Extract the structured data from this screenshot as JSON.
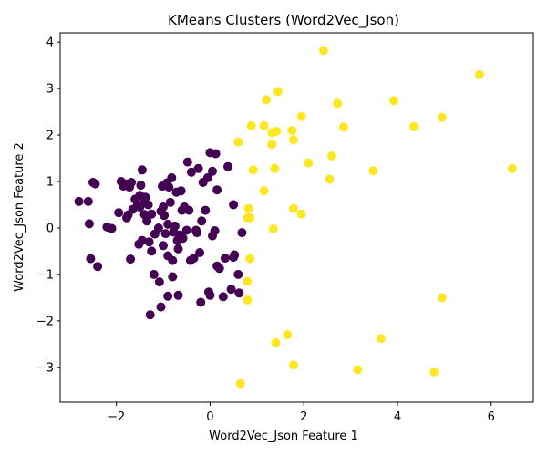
{
  "chart_data": {
    "type": "scatter",
    "title": "KMeans Clusters (Word2Vec_Json)",
    "xlabel": "Word2Vec_Json Feature 1",
    "ylabel": "Word2Vec_Json Feature 2",
    "xlim": [
      -3.2,
      6.9
    ],
    "ylim": [
      -3.75,
      4.2
    ],
    "xticks": [
      -2,
      0,
      2,
      4,
      6
    ],
    "yticks": [
      -3,
      -2,
      -1,
      0,
      1,
      2,
      3,
      4
    ],
    "xtick_labels": [
      "−2",
      "0",
      "2",
      "4",
      "6"
    ],
    "ytick_labels": [
      "−3",
      "−2",
      "−1",
      "0",
      "1",
      "2",
      "3",
      "4"
    ],
    "grid": false,
    "legend": "none",
    "series": [
      {
        "color": "#440154",
        "points": [
          [
            -2.8,
            0.57
          ],
          [
            -2.6,
            0.57
          ],
          [
            -2.58,
            0.09
          ],
          [
            -2.55,
            -0.66
          ],
          [
            -2.5,
            0.98
          ],
          [
            -2.45,
            0.95
          ],
          [
            -2.4,
            -0.83
          ],
          [
            -2.2,
            0.02
          ],
          [
            -2.1,
            -0.01
          ],
          [
            -1.95,
            0.33
          ],
          [
            -1.9,
            1.0
          ],
          [
            -1.85,
            0.9
          ],
          [
            -1.8,
            0.95
          ],
          [
            -1.78,
            0.22
          ],
          [
            -1.75,
            0.28
          ],
          [
            -1.72,
            0.88
          ],
          [
            -1.7,
            -0.67
          ],
          [
            -1.68,
            0.98
          ],
          [
            -1.65,
            0.4
          ],
          [
            -1.6,
            0.62
          ],
          [
            -1.55,
            0.5
          ],
          [
            -1.52,
            -0.35
          ],
          [
            -1.5,
            0.45
          ],
          [
            -1.5,
            0.7
          ],
          [
            -1.48,
            0.92
          ],
          [
            -1.45,
            1.25
          ],
          [
            -1.45,
            -0.27
          ],
          [
            -1.4,
            0.29
          ],
          [
            -1.4,
            0.58
          ],
          [
            -1.38,
            0.66
          ],
          [
            -1.35,
            0.15
          ],
          [
            -1.32,
            0.5
          ],
          [
            -1.3,
            -0.3
          ],
          [
            -1.28,
            -1.87
          ],
          [
            -1.25,
            -0.5
          ],
          [
            -1.25,
            0.3
          ],
          [
            -1.2,
            -1.0
          ],
          [
            -1.18,
            -0.13
          ],
          [
            -1.1,
            0.0
          ],
          [
            -1.08,
            -1.16
          ],
          [
            -1.05,
            -1.7
          ],
          [
            -1.05,
            0.36
          ],
          [
            -1.02,
            0.9
          ],
          [
            -1.0,
            -0.38
          ],
          [
            -1.0,
            0.45
          ],
          [
            -0.98,
            0.27
          ],
          [
            -0.95,
            -0.12
          ],
          [
            -0.92,
            0.97
          ],
          [
            -0.9,
            -0.6
          ],
          [
            -0.9,
            0.08
          ],
          [
            -0.9,
            -1.47
          ],
          [
            -0.88,
            0.88
          ],
          [
            -0.85,
            0.55
          ],
          [
            -0.82,
            1.08
          ],
          [
            -0.8,
            -1.05
          ],
          [
            -0.8,
            -0.7
          ],
          [
            -0.78,
            -0.09
          ],
          [
            -0.75,
            0.04
          ],
          [
            -0.72,
            0.77
          ],
          [
            -0.7,
            -0.27
          ],
          [
            -0.68,
            -0.45
          ],
          [
            -0.68,
            -1.45
          ],
          [
            -0.65,
            -0.15
          ],
          [
            -0.62,
            0.8
          ],
          [
            -0.6,
            0.38
          ],
          [
            -0.58,
            -0.22
          ],
          [
            -0.55,
            0.45
          ],
          [
            -0.5,
            -0.05
          ],
          [
            -0.48,
            1.42
          ],
          [
            -0.45,
            0.38
          ],
          [
            -0.42,
            -0.7
          ],
          [
            -0.4,
            1.2
          ],
          [
            -0.35,
            -0.65
          ],
          [
            -0.3,
            -0.05
          ],
          [
            -0.28,
            -0.1
          ],
          [
            -0.25,
            1.28
          ],
          [
            -0.22,
            -0.53
          ],
          [
            -0.2,
            -1.6
          ],
          [
            -0.18,
            0.15
          ],
          [
            -0.15,
            0.98
          ],
          [
            -0.1,
            0.38
          ],
          [
            -0.05,
            1.08
          ],
          [
            -0.03,
            -1.38
          ],
          [
            0.0,
            -1.45
          ],
          [
            0.0,
            1.62
          ],
          [
            0.05,
            -0.17
          ],
          [
            0.05,
            1.22
          ],
          [
            0.1,
            -0.06
          ],
          [
            0.12,
            1.6
          ],
          [
            0.15,
            -0.82
          ],
          [
            0.15,
            0.82
          ],
          [
            0.2,
            -0.87
          ],
          [
            0.28,
            -1.48
          ],
          [
            0.32,
            -0.65
          ],
          [
            0.38,
            1.32
          ],
          [
            0.45,
            -1.32
          ],
          [
            0.5,
            0.5
          ],
          [
            0.5,
            -0.63
          ],
          [
            0.52,
            -0.58
          ],
          [
            0.6,
            -1.0
          ],
          [
            0.62,
            -1.4
          ],
          [
            0.68,
            -0.1
          ]
        ]
      },
      {
        "color": "#fde725",
        "points": [
          [
            0.65,
            -3.35
          ],
          [
            0.8,
            0.22
          ],
          [
            0.8,
            -1.15
          ],
          [
            0.8,
            -1.55
          ],
          [
            0.82,
            0.42
          ],
          [
            0.85,
            0.22
          ],
          [
            0.85,
            -0.66
          ],
          [
            0.6,
            1.85
          ],
          [
            0.88,
            2.2
          ],
          [
            0.92,
            1.25
          ],
          [
            1.15,
            0.8
          ],
          [
            1.15,
            2.2
          ],
          [
            1.2,
            2.76
          ],
          [
            1.32,
            1.8
          ],
          [
            1.32,
            2.05
          ],
          [
            1.35,
            -0.02
          ],
          [
            1.38,
            1.28
          ],
          [
            1.4,
            -2.47
          ],
          [
            1.42,
            2.08
          ],
          [
            1.45,
            2.94
          ],
          [
            1.65,
            -2.3
          ],
          [
            1.75,
            2.1
          ],
          [
            1.78,
            1.9
          ],
          [
            1.78,
            0.42
          ],
          [
            1.78,
            -2.95
          ],
          [
            1.95,
            0.3
          ],
          [
            1.95,
            2.4
          ],
          [
            2.1,
            1.4
          ],
          [
            2.42,
            3.82
          ],
          [
            2.55,
            1.05
          ],
          [
            2.6,
            1.55
          ],
          [
            2.72,
            2.68
          ],
          [
            2.85,
            2.17
          ],
          [
            3.15,
            -3.05
          ],
          [
            3.48,
            1.23
          ],
          [
            3.65,
            -2.38
          ],
          [
            3.92,
            2.74
          ],
          [
            4.35,
            2.18
          ],
          [
            4.78,
            -3.1
          ],
          [
            4.95,
            2.38
          ],
          [
            4.95,
            -1.5
          ],
          [
            5.75,
            3.3
          ],
          [
            6.45,
            1.28
          ]
        ]
      }
    ]
  }
}
